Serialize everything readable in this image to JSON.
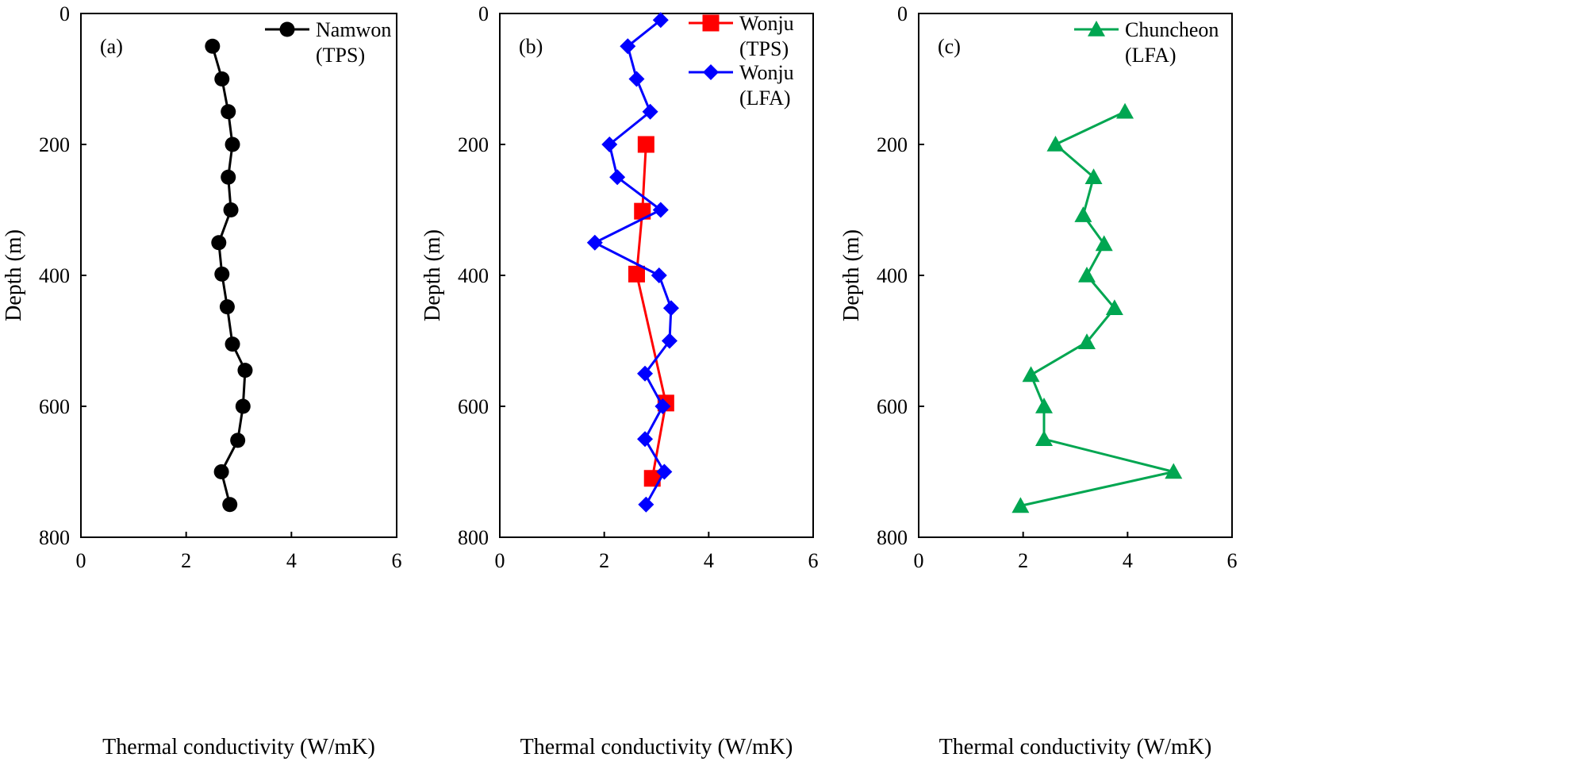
{
  "chart_data": [
    {
      "type": "line",
      "panel_label": "(a)",
      "xlabel": "Thermal conductivity (W/mK)",
      "ylabel": "Depth (m)",
      "xlim": [
        0,
        6
      ],
      "ylim": [
        0,
        800
      ],
      "y_inverted": true,
      "x_ticks": [
        "0",
        "2",
        "4",
        "6"
      ],
      "y_ticks": [
        "0",
        "200",
        "400",
        "600",
        "800"
      ],
      "grid": false,
      "legend_position": "top-right",
      "series": [
        {
          "name_lines": [
            "Namwon",
            "(TPS)"
          ],
          "color": "#000000",
          "marker": "circle",
          "points": [
            {
              "x": 2.5,
              "y": 50
            },
            {
              "x": 2.68,
              "y": 100
            },
            {
              "x": 2.8,
              "y": 150
            },
            {
              "x": 2.88,
              "y": 200
            },
            {
              "x": 2.8,
              "y": 250
            },
            {
              "x": 2.85,
              "y": 300
            },
            {
              "x": 2.62,
              "y": 350
            },
            {
              "x": 2.68,
              "y": 398
            },
            {
              "x": 2.78,
              "y": 448
            },
            {
              "x": 2.88,
              "y": 505
            },
            {
              "x": 3.12,
              "y": 545
            },
            {
              "x": 3.08,
              "y": 600
            },
            {
              "x": 2.98,
              "y": 652
            },
            {
              "x": 2.67,
              "y": 700
            },
            {
              "x": 2.83,
              "y": 750
            }
          ]
        }
      ]
    },
    {
      "type": "line",
      "panel_label": "(b)",
      "xlabel": "Thermal conductivity (W/mK)",
      "ylabel": "Depth (m)",
      "xlim": [
        0,
        6
      ],
      "ylim": [
        0,
        800
      ],
      "y_inverted": true,
      "x_ticks": [
        "0",
        "2",
        "4",
        "6"
      ],
      "y_ticks": [
        "0",
        "200",
        "400",
        "600",
        "800"
      ],
      "grid": false,
      "legend_position": "top-right",
      "series": [
        {
          "name_lines": [
            "Wonju",
            "(TPS)"
          ],
          "color": "#ff0000",
          "marker": "square",
          "points": [
            {
              "x": 2.8,
              "y": 200
            },
            {
              "x": 2.73,
              "y": 302
            },
            {
              "x": 2.62,
              "y": 398
            },
            {
              "x": 3.18,
              "y": 595
            },
            {
              "x": 2.92,
              "y": 710
            }
          ]
        },
        {
          "name_lines": [
            "Wonju",
            "(LFA)"
          ],
          "color": "#0000ff",
          "marker": "diamond",
          "points": [
            {
              "x": 3.08,
              "y": 10
            },
            {
              "x": 2.45,
              "y": 50
            },
            {
              "x": 2.62,
              "y": 100
            },
            {
              "x": 2.88,
              "y": 150
            },
            {
              "x": 2.1,
              "y": 200
            },
            {
              "x": 2.25,
              "y": 250
            },
            {
              "x": 3.08,
              "y": 300
            },
            {
              "x": 1.82,
              "y": 350
            },
            {
              "x": 3.05,
              "y": 400
            },
            {
              "x": 3.28,
              "y": 450
            },
            {
              "x": 3.25,
              "y": 500
            },
            {
              "x": 2.78,
              "y": 550
            },
            {
              "x": 3.12,
              "y": 600
            },
            {
              "x": 2.78,
              "y": 650
            },
            {
              "x": 3.15,
              "y": 700
            },
            {
              "x": 2.8,
              "y": 750
            }
          ]
        }
      ]
    },
    {
      "type": "line",
      "panel_label": "(c)",
      "xlabel": "Thermal conductivity (W/mK)",
      "ylabel": "Depth (m)",
      "xlim": [
        0,
        6
      ],
      "ylim": [
        0,
        800
      ],
      "y_inverted": true,
      "x_ticks": [
        "0",
        "2",
        "4",
        "6"
      ],
      "y_ticks": [
        "0",
        "200",
        "400",
        "600",
        "800"
      ],
      "grid": false,
      "legend_position": "top-right",
      "series": [
        {
          "name_lines": [
            "Chuncheon",
            "(LFA)"
          ],
          "color": "#00a651",
          "marker": "triangle",
          "points": [
            {
              "x": 3.95,
              "y": 150
            },
            {
              "x": 2.62,
              "y": 200
            },
            {
              "x": 3.35,
              "y": 250
            },
            {
              "x": 3.15,
              "y": 308
            },
            {
              "x": 3.55,
              "y": 352
            },
            {
              "x": 3.22,
              "y": 400
            },
            {
              "x": 3.75,
              "y": 450
            },
            {
              "x": 3.22,
              "y": 502
            },
            {
              "x": 2.15,
              "y": 552
            },
            {
              "x": 2.4,
              "y": 600
            },
            {
              "x": 2.4,
              "y": 650
            },
            {
              "x": 4.88,
              "y": 700
            },
            {
              "x": 1.95,
              "y": 752
            }
          ]
        }
      ]
    }
  ]
}
